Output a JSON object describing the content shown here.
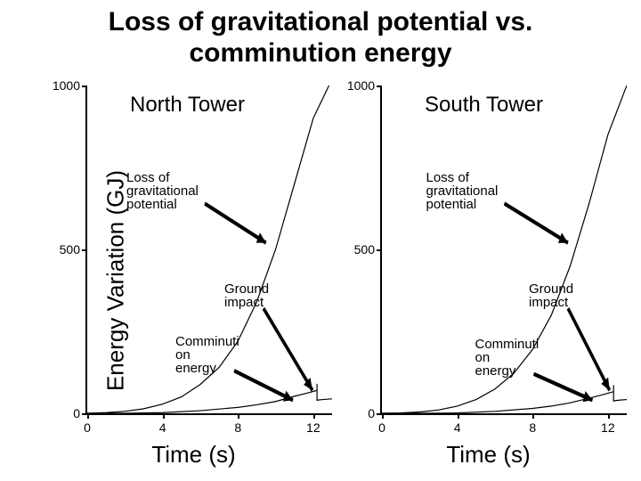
{
  "title_line1": "Loss of gravitational potential vs.",
  "title_line2": "comminution energy",
  "title_fontsize": 30,
  "ylabel": "Energy Variation (GJ)",
  "xlabel": "Time (s)",
  "axis_label_fontsize": 26,
  "ylim": [
    0,
    1000
  ],
  "xlim": [
    0,
    13
  ],
  "yticks": [
    0,
    500,
    1000
  ],
  "xticks": [
    0,
    4,
    8,
    12
  ],
  "line_color": "#000000",
  "line_width": 2,
  "bg_color": "#ffffff",
  "panels": [
    {
      "title": "North Tower",
      "annot_loss": "Loss of\ngravitational\npotential",
      "annot_ground": "Ground\nimpact",
      "annot_comm": "Comminuti\non\nenergy",
      "series_potential": [
        [
          0,
          0
        ],
        [
          1,
          2
        ],
        [
          2,
          6
        ],
        [
          3,
          14
        ],
        [
          4,
          28
        ],
        [
          5,
          50
        ],
        [
          6,
          88
        ],
        [
          7,
          140
        ],
        [
          8,
          220
        ],
        [
          9,
          340
        ],
        [
          10,
          500
        ],
        [
          11,
          700
        ],
        [
          12,
          900
        ],
        [
          13,
          1020
        ]
      ],
      "series_comminution": [
        [
          0,
          0
        ],
        [
          2,
          0
        ],
        [
          4,
          2
        ],
        [
          6,
          8
        ],
        [
          8,
          18
        ],
        [
          9,
          26
        ],
        [
          10,
          36
        ],
        [
          11,
          52
        ],
        [
          11.7,
          62
        ],
        [
          12.2,
          70
        ],
        [
          12.2,
          90
        ],
        [
          12.2,
          40
        ],
        [
          12.5,
          42
        ],
        [
          13,
          44
        ]
      ],
      "annot_positions": {
        "loss": {
          "left_pct": 16,
          "top_pct": 26
        },
        "ground": {
          "left_pct": 56,
          "top_pct": 60
        },
        "comm": {
          "left_pct": 36,
          "top_pct": 76
        }
      },
      "arrows": [
        {
          "from": [
            48,
            36
          ],
          "to": [
            73,
            48
          ]
        },
        {
          "from": [
            72,
            68
          ],
          "to": [
            92,
            93
          ]
        },
        {
          "from": [
            60,
            87
          ],
          "to": [
            84,
            96
          ]
        }
      ]
    },
    {
      "title": "South Tower",
      "annot_loss": "Loss of\ngravitational\npotential",
      "annot_ground": "Ground\nimpact",
      "annot_comm": "Comminuti\non\nenergy",
      "series_potential": [
        [
          0,
          0
        ],
        [
          1,
          1
        ],
        [
          2,
          4
        ],
        [
          3,
          10
        ],
        [
          4,
          22
        ],
        [
          5,
          42
        ],
        [
          6,
          74
        ],
        [
          7,
          122
        ],
        [
          8,
          195
        ],
        [
          9,
          300
        ],
        [
          10,
          450
        ],
        [
          11,
          640
        ],
        [
          12,
          850
        ],
        [
          13,
          1000
        ]
      ],
      "series_comminution": [
        [
          0,
          0
        ],
        [
          2,
          0
        ],
        [
          4,
          1
        ],
        [
          6,
          6
        ],
        [
          8,
          15
        ],
        [
          9,
          22
        ],
        [
          10,
          32
        ],
        [
          11,
          46
        ],
        [
          11.8,
          58
        ],
        [
          12.3,
          66
        ],
        [
          12.3,
          86
        ],
        [
          12.3,
          38
        ],
        [
          12.6,
          40
        ],
        [
          13,
          42
        ]
      ],
      "annot_positions": {
        "loss": {
          "left_pct": 18,
          "top_pct": 26
        },
        "ground": {
          "left_pct": 60,
          "top_pct": 60
        },
        "comm": {
          "left_pct": 38,
          "top_pct": 77
        }
      },
      "arrows": [
        {
          "from": [
            50,
            36
          ],
          "to": [
            76,
            48
          ]
        },
        {
          "from": [
            76,
            68
          ],
          "to": [
            93,
            93
          ]
        },
        {
          "from": [
            62,
            88
          ],
          "to": [
            86,
            96
          ]
        }
      ]
    }
  ]
}
